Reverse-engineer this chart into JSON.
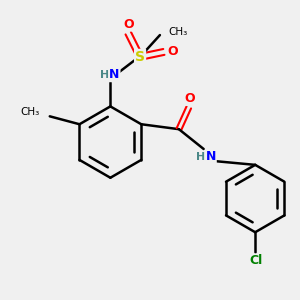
{
  "background_color": "#f0f0f0",
  "bond_color": "#000000",
  "atom_colors": {
    "O": "#ff0000",
    "N": "#0000ff",
    "S": "#cccc00",
    "Cl": "#008000",
    "C": "#000000",
    "H": "#4a8888"
  },
  "figsize": [
    3.0,
    3.0
  ],
  "dpi": 100
}
